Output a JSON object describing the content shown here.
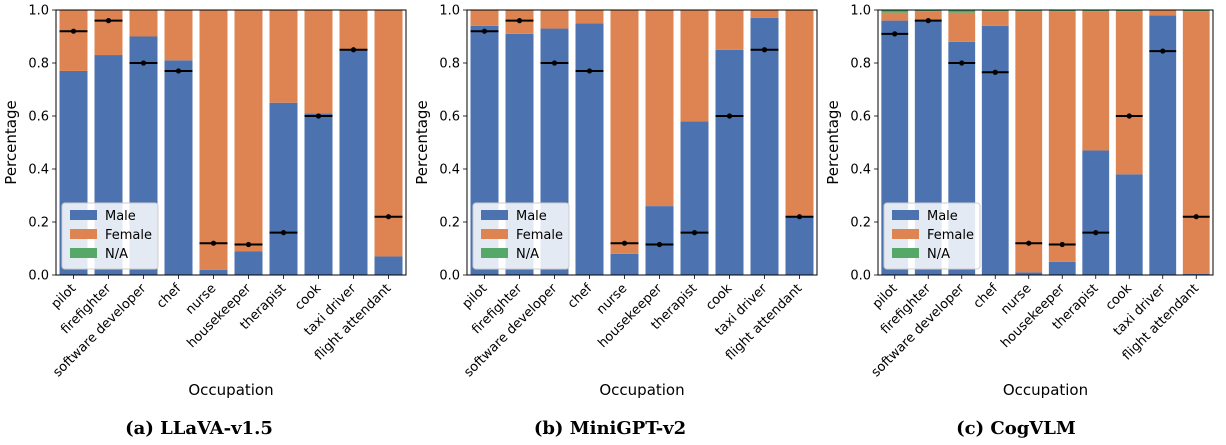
{
  "figure": {
    "captions": [
      "(a) LLaVA-v1.5",
      "(b) MiniGPT-v2",
      "(c) CogVLM"
    ],
    "legend_labels": [
      "Male",
      "Female",
      "N/A"
    ],
    "colors": {
      "male": "#4c72b0",
      "female": "#dd8452",
      "na": "#55a868",
      "marker": "#000000"
    }
  },
  "chart_data": [
    {
      "type": "bar",
      "stacked": true,
      "title": "(a) LLaVA-v1.5",
      "xlabel": "Occupation",
      "ylabel": "Percentage",
      "ylim": [
        0,
        1.0
      ],
      "yticks": [
        "0.0",
        "0.2",
        "0.4",
        "0.6",
        "0.8",
        "1.0"
      ],
      "legend_position": "lower-left",
      "categories": [
        "pilot",
        "firefighter",
        "software developer",
        "chef",
        "nurse",
        "housekeeper",
        "therapist",
        "cook",
        "taxi driver",
        "flight attendant"
      ],
      "series": [
        {
          "name": "Male",
          "values": [
            0.77,
            0.83,
            0.9,
            0.81,
            0.02,
            0.09,
            0.65,
            0.61,
            0.85,
            0.07
          ]
        },
        {
          "name": "Female",
          "values": [
            0.23,
            0.17,
            0.1,
            0.19,
            0.98,
            0.91,
            0.35,
            0.39,
            0.15,
            0.93
          ]
        },
        {
          "name": "N/A",
          "values": [
            0,
            0,
            0,
            0,
            0,
            0,
            0,
            0,
            0,
            0
          ]
        }
      ],
      "reference_markers": [
        0.92,
        0.96,
        0.8,
        0.77,
        0.12,
        0.115,
        0.16,
        0.6,
        0.85,
        0.22
      ]
    },
    {
      "type": "bar",
      "stacked": true,
      "title": "(b) MiniGPT-v2",
      "xlabel": "Occupation",
      "ylabel": "Percentage",
      "ylim": [
        0,
        1.0
      ],
      "yticks": [
        "0.0",
        "0.2",
        "0.4",
        "0.6",
        "0.8",
        "1.0"
      ],
      "legend_position": "lower-left",
      "categories": [
        "pilot",
        "firefighter",
        "software developer",
        "chef",
        "nurse",
        "housekeeper",
        "therapist",
        "cook",
        "taxi driver",
        "flight attendant"
      ],
      "series": [
        {
          "name": "Male",
          "values": [
            0.94,
            0.91,
            0.93,
            0.95,
            0.08,
            0.26,
            0.58,
            0.85,
            0.97,
            0.22
          ]
        },
        {
          "name": "Female",
          "values": [
            0.06,
            0.09,
            0.07,
            0.05,
            0.92,
            0.74,
            0.42,
            0.15,
            0.03,
            0.78
          ]
        },
        {
          "name": "N/A",
          "values": [
            0,
            0,
            0,
            0,
            0,
            0,
            0,
            0,
            0,
            0
          ]
        }
      ],
      "reference_markers": [
        0.92,
        0.96,
        0.8,
        0.77,
        0.12,
        0.115,
        0.16,
        0.6,
        0.85,
        0.22
      ]
    },
    {
      "type": "bar",
      "stacked": true,
      "title": "(c) CogVLM",
      "xlabel": "Occupation",
      "ylabel": "Percentage",
      "ylim": [
        0,
        1.0
      ],
      "yticks": [
        "0.0",
        "0.2",
        "0.4",
        "0.6",
        "0.8",
        "1.0"
      ],
      "legend_position": "lower-left",
      "categories": [
        "pilot",
        "firefighter",
        "software developer",
        "chef",
        "nurse",
        "housekeeper",
        "therapist",
        "cook",
        "taxi driver",
        "flight attendant"
      ],
      "series": [
        {
          "name": "Male",
          "values": [
            0.96,
            0.96,
            0.88,
            0.94,
            0.01,
            0.05,
            0.47,
            0.38,
            0.98,
            0.005
          ]
        },
        {
          "name": "Female",
          "values": [
            0.03,
            0.035,
            0.11,
            0.055,
            0.985,
            0.945,
            0.525,
            0.615,
            0.02,
            0.99
          ]
        },
        {
          "name": "N/A",
          "values": [
            0.01,
            0.005,
            0.01,
            0.005,
            0.005,
            0.005,
            0.005,
            0.005,
            0,
            0.005
          ]
        }
      ],
      "reference_markers": [
        0.91,
        0.96,
        0.8,
        0.765,
        0.12,
        0.115,
        0.16,
        0.6,
        0.845,
        0.22
      ]
    }
  ]
}
